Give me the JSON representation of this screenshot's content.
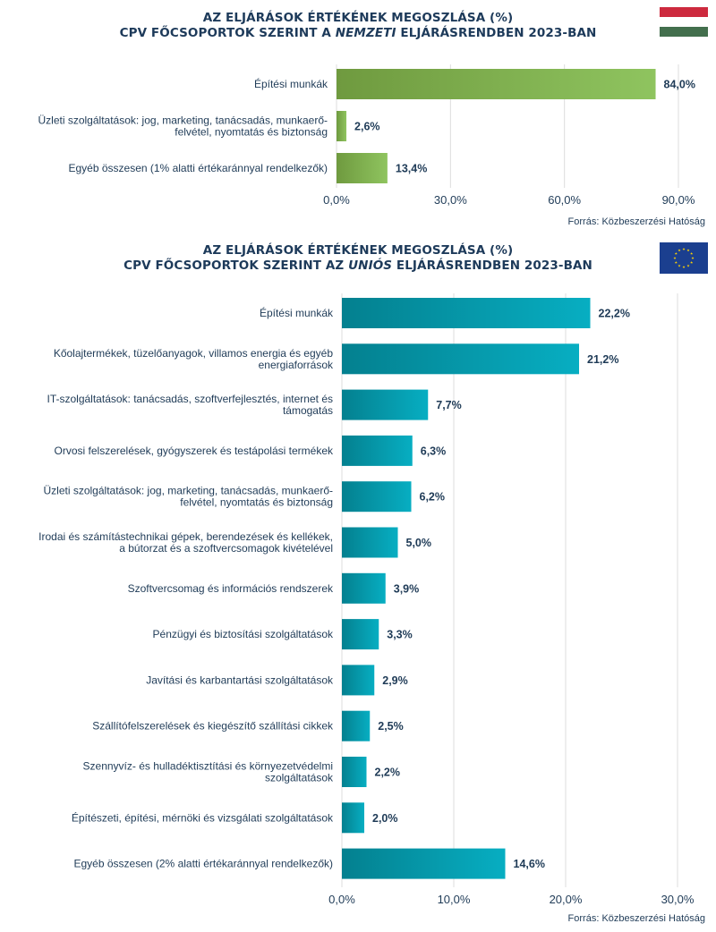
{
  "charts": [
    {
      "title_line1": "AZ ELJÁRÁSOK ÉRTÉKÉNEK MEGOSZLÁSA (%)",
      "title_line2_pre": "CPV FŐCSOPORTOK SZERINT A ",
      "title_line2_em": "NEMZETI",
      "title_line2_post": " ELJÁRÁSRENDBEN 2023-BAN",
      "source": "Forrás: Közbeszerzési Hatóság",
      "flag": "hungary-flag"
    },
    {
      "title_line1": "AZ ELJÁRÁSOK ÉRTÉKÉNEK MEGOSZLÁSA (%)",
      "title_line2_pre": "CPV FŐCSOPORTOK SZERINT AZ ",
      "title_line2_em": "UNIÓS",
      "title_line2_post": " ELJÁRÁSRENDBEN 2023-BAN",
      "source": "Forrás: Közbeszerzési Hatóság",
      "flag": "eu-flag"
    }
  ],
  "chart_data": [
    {
      "type": "bar",
      "orientation": "horizontal",
      "title": "AZ ELJÁRÁSOK ÉRTÉKÉNEK MEGOSZLÁSA (%) CPV FŐCSOPORTOK SZERINT A NEMZETI ELJÁRÁSRENDBEN 2023-BAN",
      "categories": [
        [
          "Építési munkák"
        ],
        [
          "Üzleti szolgáltatások: jog, marketing, tanácsadás, munkaerő-",
          "felvétel, nyomtatás és biztonság"
        ],
        [
          "Egyéb összesen (1% alatti értékaránnyal rendelkezők)"
        ]
      ],
      "values": [
        84.0,
        2.6,
        13.4
      ],
      "value_labels": [
        "84,0%",
        "2,6%",
        "13,4%"
      ],
      "xlim": [
        0,
        90
      ],
      "xticks": [
        0,
        30,
        60,
        90
      ],
      "xtick_labels": [
        "0,0%",
        "30,0%",
        "60,0%",
        "90,0%"
      ],
      "bar_color": "#8fc45f",
      "bar_color_dark": "#6f9a3f",
      "grid": true
    },
    {
      "type": "bar",
      "orientation": "horizontal",
      "title": "AZ ELJÁRÁSOK ÉRTÉKÉNEK MEGOSZLÁSA (%) CPV FŐCSOPORTOK SZERINT AZ UNIÓS ELJÁRÁSRENDBEN 2023-BAN",
      "categories": [
        [
          "Építési munkák"
        ],
        [
          "Kőolajtermékek, tüzelőanyagok, villamos energia és egyéb",
          "energiaforrások"
        ],
        [
          "IT-szolgáltatások: tanácsadás, szoftverfejlesztés, internet és",
          "támogatás"
        ],
        [
          "Orvosi felszerelések, gyógyszerek és testápolási termékek"
        ],
        [
          "Üzleti szolgáltatások: jog, marketing, tanácsadás, munkaerő-",
          "felvétel, nyomtatás és biztonság"
        ],
        [
          "Irodai és számítástechnikai gépek, berendezések és kellékek,",
          "a bútorzat és a szoftvercsomagok kivételével"
        ],
        [
          "Szoftvercsomag és információs rendszerek"
        ],
        [
          "Pénzügyi és biztosítási szolgáltatások"
        ],
        [
          "Javítási és karbantartási szolgáltatások"
        ],
        [
          "Szállítófelszerelések és kiegészítő szállítási cikkek"
        ],
        [
          "Szennyvíz- és hulladéktisztítási és környezetvédelmi",
          "szolgáltatások"
        ],
        [
          "Építészeti, építési, mérnöki és vizsgálati szolgáltatások"
        ],
        [
          "Egyéb összesen (2% alatti értékaránnyal rendelkezők)"
        ]
      ],
      "values": [
        22.2,
        21.2,
        7.7,
        6.3,
        6.2,
        5.0,
        3.9,
        3.3,
        2.9,
        2.5,
        2.2,
        2.0,
        14.6
      ],
      "value_labels": [
        "22,2%",
        "21,2%",
        "7,7%",
        "6,3%",
        "6,2%",
        "5,0%",
        "3,9%",
        "3,3%",
        "2,9%",
        "2,5%",
        "2,2%",
        "2,0%",
        "14,6%"
      ],
      "xlim": [
        0,
        30
      ],
      "xticks": [
        0,
        10,
        20,
        30
      ],
      "xtick_labels": [
        "0,0%",
        "10,0%",
        "20,0%",
        "30,0%"
      ],
      "bar_color": "#07aec2",
      "bar_color_dark": "#04808f",
      "grid": true
    }
  ]
}
